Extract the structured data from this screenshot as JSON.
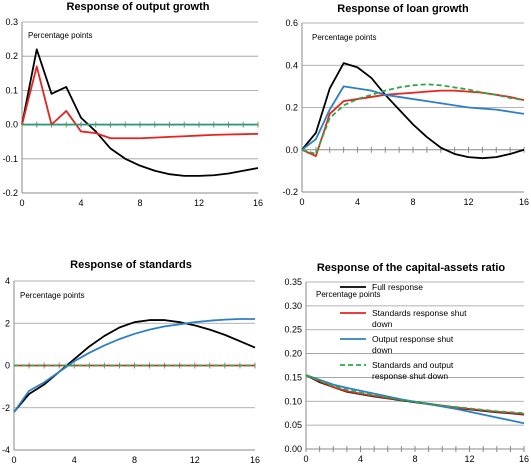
{
  "chart_data": [
    {
      "type": "line",
      "title": "Response of output growth",
      "note": "Percentage points",
      "xlim": [
        0,
        16
      ],
      "ylim": [
        -0.2,
        0.3
      ],
      "xticks": [
        0,
        4,
        8,
        12,
        16
      ],
      "yticks": [
        -0.2,
        -0.1,
        0.0,
        0.1,
        0.2,
        0.3
      ],
      "ytick_labels": [
        "-0.2",
        "-0.1",
        "0.0",
        "0.1",
        "0.2",
        "0.3"
      ],
      "grid": "horizontal",
      "series": [
        {
          "name": "Full response",
          "color": "#000000",
          "dash": "solid",
          "x": [
            0,
            1,
            2,
            3,
            4,
            5,
            6,
            7,
            8,
            9,
            10,
            11,
            12,
            13,
            14,
            15,
            16
          ],
          "y": [
            0.0,
            0.22,
            0.09,
            0.11,
            0.02,
            -0.02,
            -0.07,
            -0.1,
            -0.12,
            -0.135,
            -0.145,
            -0.15,
            -0.15,
            -0.148,
            -0.143,
            -0.135,
            -0.127
          ]
        },
        {
          "name": "Standards response shut down",
          "color": "#e8231f",
          "dash": "solid",
          "x": [
            0,
            1,
            2,
            3,
            4,
            5,
            6,
            7,
            8,
            9,
            10,
            11,
            12,
            13,
            14,
            15,
            16
          ],
          "y": [
            0.0,
            0.17,
            0.0,
            0.04,
            -0.02,
            -0.025,
            -0.04,
            -0.04,
            -0.04,
            -0.038,
            -0.036,
            -0.034,
            -0.032,
            -0.03,
            -0.029,
            -0.028,
            -0.027
          ]
        },
        {
          "name": "Output response shut down",
          "color": "#2e7fc4",
          "dash": "solid",
          "x": [
            0,
            16
          ],
          "y": [
            0.0,
            0.0
          ]
        },
        {
          "name": "Standards and output response shut down",
          "color": "#2ba84a",
          "dash": "dashed",
          "x": [
            0,
            16
          ],
          "y": [
            0.0,
            0.0
          ]
        }
      ]
    },
    {
      "type": "line",
      "title": "Response of loan growth",
      "note": "Percentage points",
      "xlim": [
        0,
        16
      ],
      "ylim": [
        -0.2,
        0.6
      ],
      "xticks": [
        0,
        4,
        8,
        12,
        16
      ],
      "yticks": [
        -0.2,
        0.0,
        0.2,
        0.4,
        0.6
      ],
      "ytick_labels": [
        "-0.2",
        "0.0",
        "0.2",
        "0.4",
        "0.6"
      ],
      "grid": "horizontal",
      "series": [
        {
          "name": "Full response",
          "color": "#000000",
          "dash": "solid",
          "x": [
            0,
            1,
            2,
            3,
            4,
            5,
            6,
            7,
            8,
            9,
            10,
            11,
            12,
            13,
            14,
            15,
            16
          ],
          "y": [
            0.0,
            0.08,
            0.29,
            0.41,
            0.39,
            0.34,
            0.26,
            0.19,
            0.12,
            0.06,
            0.01,
            -0.02,
            -0.035,
            -0.04,
            -0.035,
            -0.02,
            0.0
          ]
        },
        {
          "name": "Standards response shut down",
          "color": "#e8231f",
          "dash": "solid",
          "x": [
            0,
            1,
            2,
            3,
            4,
            5,
            6,
            7,
            8,
            9,
            10,
            11,
            12,
            13,
            14,
            15,
            16
          ],
          "y": [
            0.0,
            -0.03,
            0.17,
            0.23,
            0.24,
            0.25,
            0.26,
            0.265,
            0.27,
            0.275,
            0.28,
            0.28,
            0.275,
            0.27,
            0.26,
            0.25,
            0.235
          ]
        },
        {
          "name": "Output response shut down",
          "color": "#2e7fc4",
          "dash": "solid",
          "x": [
            0,
            1,
            2,
            3,
            4,
            5,
            6,
            7,
            8,
            9,
            10,
            11,
            12,
            13,
            14,
            15,
            16
          ],
          "y": [
            0.0,
            0.05,
            0.19,
            0.3,
            0.29,
            0.28,
            0.26,
            0.25,
            0.24,
            0.23,
            0.22,
            0.21,
            0.2,
            0.195,
            0.19,
            0.18,
            0.17
          ]
        },
        {
          "name": "Standards and output response shut down",
          "color": "#2ba84a",
          "dash": "dashed",
          "x": [
            0,
            1,
            2,
            3,
            4,
            5,
            6,
            7,
            8,
            9,
            10,
            11,
            12,
            13,
            14,
            15,
            16
          ],
          "y": [
            0.0,
            -0.02,
            0.15,
            0.21,
            0.24,
            0.26,
            0.28,
            0.295,
            0.305,
            0.31,
            0.305,
            0.295,
            0.285,
            0.27,
            0.26,
            0.245,
            0.235
          ]
        }
      ]
    },
    {
      "type": "line",
      "title": "Response of standards",
      "note": "Percentage points",
      "xlim": [
        0,
        16
      ],
      "ylim": [
        -4,
        4
      ],
      "xticks": [
        0,
        4,
        8,
        12,
        16
      ],
      "yticks": [
        -4,
        -2,
        0,
        2,
        4
      ],
      "ytick_labels": [
        "-4",
        "-2",
        "0",
        "2",
        "4"
      ],
      "grid": "horizontal",
      "series": [
        {
          "name": "Full response",
          "color": "#000000",
          "dash": "solid",
          "x": [
            0,
            1,
            2,
            3,
            4,
            5,
            6,
            7,
            8,
            9,
            10,
            11,
            12,
            13,
            14,
            15,
            16
          ],
          "y": [
            -2.2,
            -1.35,
            -0.9,
            -0.3,
            0.3,
            0.9,
            1.4,
            1.8,
            2.05,
            2.15,
            2.15,
            2.05,
            1.9,
            1.7,
            1.45,
            1.15,
            0.85
          ]
        },
        {
          "name": "Standards response shut down",
          "color": "#e8231f",
          "dash": "solid",
          "x": [
            0,
            16
          ],
          "y": [
            0,
            0
          ]
        },
        {
          "name": "Output response shut down",
          "color": "#2e7fc4",
          "dash": "solid",
          "x": [
            0,
            1,
            2,
            3,
            4,
            5,
            6,
            7,
            8,
            9,
            10,
            11,
            12,
            13,
            14,
            15,
            16
          ],
          "y": [
            -2.2,
            -1.2,
            -0.8,
            -0.3,
            0.2,
            0.6,
            0.95,
            1.25,
            1.5,
            1.7,
            1.85,
            1.95,
            2.05,
            2.12,
            2.17,
            2.2,
            2.2
          ]
        },
        {
          "name": "Standards and output response shut down",
          "color": "#2ba84a",
          "dash": "dashed",
          "x": [
            0,
            16
          ],
          "y": [
            0,
            0
          ]
        }
      ]
    },
    {
      "type": "line",
      "title": "Response of the capital-assets ratio",
      "note": "Percentage points",
      "xlim": [
        0,
        16
      ],
      "ylim": [
        0,
        0.35
      ],
      "xticks": [
        0,
        4,
        8,
        12,
        16
      ],
      "yticks": [
        0,
        0.05,
        0.1,
        0.15,
        0.2,
        0.25,
        0.3,
        0.35
      ],
      "ytick_labels": [
        "0.00",
        "0.05",
        "0.10",
        "0.15",
        "0.20",
        "0.25",
        "0.30",
        "0.35"
      ],
      "grid": "horizontal",
      "legend_position": "top-right",
      "series": [
        {
          "name": "Full response",
          "color": "#000000",
          "dash": "solid",
          "x": [
            0,
            1,
            2,
            3,
            4,
            5,
            6,
            7,
            8,
            9,
            10,
            11,
            12,
            13,
            14,
            15,
            16
          ],
          "y": [
            0.155,
            0.14,
            0.13,
            0.12,
            0.115,
            0.11,
            0.106,
            0.102,
            0.098,
            0.094,
            0.09,
            0.086,
            0.083,
            0.08,
            0.077,
            0.075,
            0.072
          ]
        },
        {
          "name": "Standards response shut down",
          "color": "#e8231f",
          "dash": "solid",
          "x": [
            0,
            1,
            2,
            3,
            4,
            5,
            6,
            7,
            8,
            9,
            10,
            11,
            12,
            13,
            14,
            15,
            16
          ],
          "y": [
            0.155,
            0.142,
            0.13,
            0.121,
            0.116,
            0.111,
            0.107,
            0.103,
            0.099,
            0.095,
            0.091,
            0.087,
            0.084,
            0.081,
            0.078,
            0.076,
            0.073
          ]
        },
        {
          "name": "Output response shut down",
          "color": "#2e7fc4",
          "dash": "solid",
          "x": [
            0,
            1,
            2,
            3,
            4,
            5,
            6,
            7,
            8,
            9,
            10,
            11,
            12,
            13,
            14,
            15,
            16
          ],
          "y": [
            0.155,
            0.145,
            0.135,
            0.128,
            0.122,
            0.116,
            0.11,
            0.104,
            0.099,
            0.094,
            0.089,
            0.084,
            0.078,
            0.072,
            0.066,
            0.06,
            0.054
          ]
        },
        {
          "name": "Standards and output response shut down",
          "color": "#2ba84a",
          "dash": "dashed",
          "x": [
            0,
            1,
            2,
            3,
            4,
            5,
            6,
            7,
            8,
            9,
            10,
            11,
            12,
            13,
            14,
            15,
            16
          ],
          "y": [
            0.155,
            0.143,
            0.132,
            0.124,
            0.118,
            0.113,
            0.108,
            0.103,
            0.099,
            0.095,
            0.091,
            0.088,
            0.085,
            0.082,
            0.079,
            0.077,
            0.075
          ]
        }
      ],
      "legend": [
        {
          "label": "Full response",
          "color": "#000000",
          "dash": "solid"
        },
        {
          "label": "Standards response shut down",
          "color": "#e8231f",
          "dash": "solid"
        },
        {
          "label": "Output response shut down",
          "color": "#2e7fc4",
          "dash": "solid"
        },
        {
          "label": "Standards and output response shut down",
          "color": "#2ba84a",
          "dash": "dashed"
        }
      ]
    }
  ]
}
